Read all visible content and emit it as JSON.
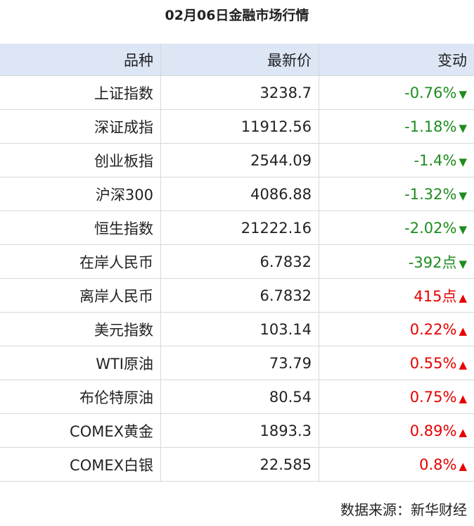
{
  "header": {
    "title": "02月06日金融市场行情"
  },
  "table": {
    "columns": [
      "品种",
      "最新价",
      "变动"
    ],
    "rows": [
      {
        "name": "上证指数",
        "price": "3238.7",
        "change": "-0.76%",
        "arrow": "▼",
        "color": "#1e8c1e"
      },
      {
        "name": "深证成指",
        "price": "11912.56",
        "change": "-1.18%",
        "arrow": "▼",
        "color": "#1e8c1e"
      },
      {
        "name": "创业板指",
        "price": "2544.09",
        "change": "-1.4%",
        "arrow": "▼",
        "color": "#1e8c1e"
      },
      {
        "name": "沪深300",
        "price": "4086.88",
        "change": "-1.32%",
        "arrow": "▼",
        "color": "#1e8c1e"
      },
      {
        "name": "恒生指数",
        "price": "21222.16",
        "change": "-2.02%",
        "arrow": "▼",
        "color": "#1e8c1e"
      },
      {
        "name": "在岸人民币",
        "price": "6.7832",
        "change": "-392点",
        "arrow": "▼",
        "color": "#1e8c1e"
      },
      {
        "name": "离岸人民币",
        "price": "6.7832",
        "change": "415点",
        "arrow": "▲",
        "color": "#e60000"
      },
      {
        "name": "美元指数",
        "price": "103.14",
        "change": "0.22%",
        "arrow": "▲",
        "color": "#e60000"
      },
      {
        "name": "WTI原油",
        "price": "73.79",
        "change": "0.55%",
        "arrow": "▲",
        "color": "#e60000"
      },
      {
        "name": "布伦特原油",
        "price": "80.54",
        "change": "0.75%",
        "arrow": "▲",
        "color": "#e60000"
      },
      {
        "name": "COMEX黄金",
        "price": "1893.3",
        "change": "0.89%",
        "arrow": "▲",
        "color": "#e60000"
      },
      {
        "name": "COMEX白银",
        "price": "22.585",
        "change": "0.8%",
        "arrow": "▲",
        "color": "#e60000"
      }
    ]
  },
  "footer": {
    "source": "数据来源：新华财经"
  }
}
